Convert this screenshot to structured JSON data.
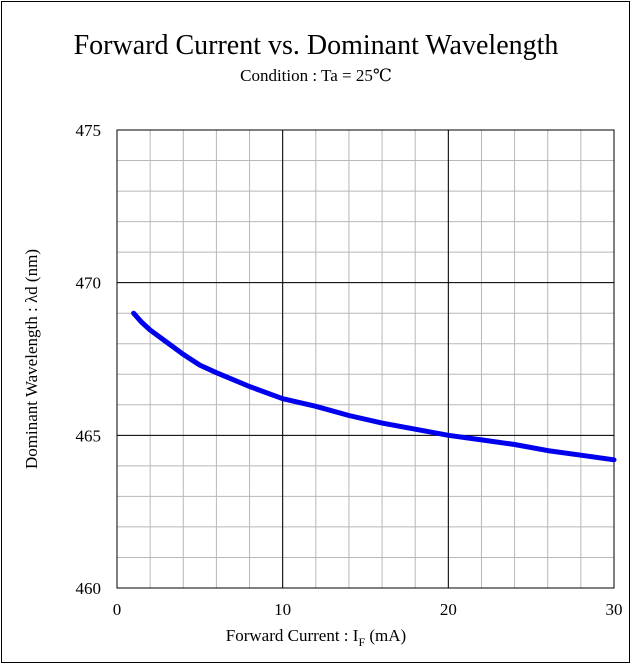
{
  "chart_data": {
    "type": "line",
    "title": "Forward Current vs. Dominant Wavelength",
    "subtitle": "Condition : Ta = 25℃",
    "xlabel_main": "Forward Current : I",
    "xlabel_sub": "F",
    "xlabel_unit": " (mA)",
    "ylabel": "Dominant Wavelength : λd (nm)",
    "xlim": [
      0,
      30
    ],
    "ylim": [
      460,
      475
    ],
    "x_ticks": [
      0,
      10,
      20,
      30
    ],
    "y_ticks": [
      460,
      465,
      470,
      475
    ],
    "x_minor_step": 2,
    "y_minor_step": 1,
    "grid": true,
    "line_color": "#0000ee",
    "series": [
      {
        "x": [
          1,
          1.5,
          2,
          3,
          4,
          5,
          6,
          8,
          10,
          12,
          14,
          16,
          18,
          20,
          22,
          24,
          26,
          28,
          30
        ],
        "y": [
          469.0,
          468.7,
          468.45,
          468.05,
          467.65,
          467.3,
          467.05,
          466.6,
          466.2,
          465.95,
          465.65,
          465.4,
          465.2,
          465.0,
          464.85,
          464.7,
          464.5,
          464.35,
          464.2
        ]
      }
    ]
  }
}
